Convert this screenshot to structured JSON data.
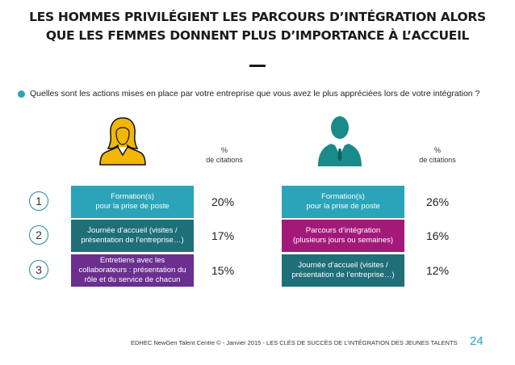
{
  "title": {
    "line1": "LES HOMMES PRIVILÉGIENT LES PARCOURS D’INTÉGRATION ALORS",
    "line2": "QUE LES FEMMES DONNENT PLUS D’IMPORTANCE À L’ACCUEIL"
  },
  "question": "Quelles sont les actions mises en place par votre entreprise que vous avez le plus appréciées lors de votre intégration ?",
  "pct_header": {
    "symbol": "%",
    "label": "de citations"
  },
  "ranks": [
    "1",
    "2",
    "3"
  ],
  "colors": {
    "teal": "#2aa4b8",
    "dark_teal": "#1f6f78",
    "purple": "#6a2f8f",
    "magenta": "#a3197a",
    "woman_icon": "#f2b705",
    "man_icon": "#1a8a8a"
  },
  "chart_data": [
    {
      "type": "table",
      "group": "femmes",
      "icon": "woman-icon",
      "items": [
        {
          "rank": 1,
          "lines": [
            "Formation(s)",
            "pour la prise de poste"
          ],
          "value": 20,
          "value_label": "20%",
          "color": "#2aa4b8"
        },
        {
          "rank": 2,
          "lines": [
            "Journée d’accueil (visites /",
            "présentation de l’entreprise…)"
          ],
          "value": 17,
          "value_label": "17%",
          "color": "#1f6f78"
        },
        {
          "rank": 3,
          "lines": [
            "Entretiens avec les",
            "collaborateurs : présentation du",
            "rôle et du service de chacun"
          ],
          "value": 15,
          "value_label": "15%",
          "color": "#6a2f8f"
        }
      ]
    },
    {
      "type": "table",
      "group": "hommes",
      "icon": "man-icon",
      "items": [
        {
          "rank": 1,
          "lines": [
            "Formation(s)",
            "pour la prise de poste"
          ],
          "value": 26,
          "value_label": "26%",
          "color": "#2aa4b8"
        },
        {
          "rank": 2,
          "lines": [
            "Parcours d’intégration",
            "(plusieurs jours ou semaines)"
          ],
          "value": 16,
          "value_label": "16%",
          "color": "#a3197a"
        },
        {
          "rank": 3,
          "lines": [
            "Journée d’accueil (visites /",
            "présentation de l’entreprise…)"
          ],
          "value": 12,
          "value_label": "12%",
          "color": "#1f6f78"
        }
      ]
    }
  ],
  "footer": "EDHEC NewGen Talent Centre © - Janvier 2015 - LES CLÉS DE SUCCÈS DE L’INTÉGRATION DES JEUNES TALENTS",
  "page_number": "24"
}
